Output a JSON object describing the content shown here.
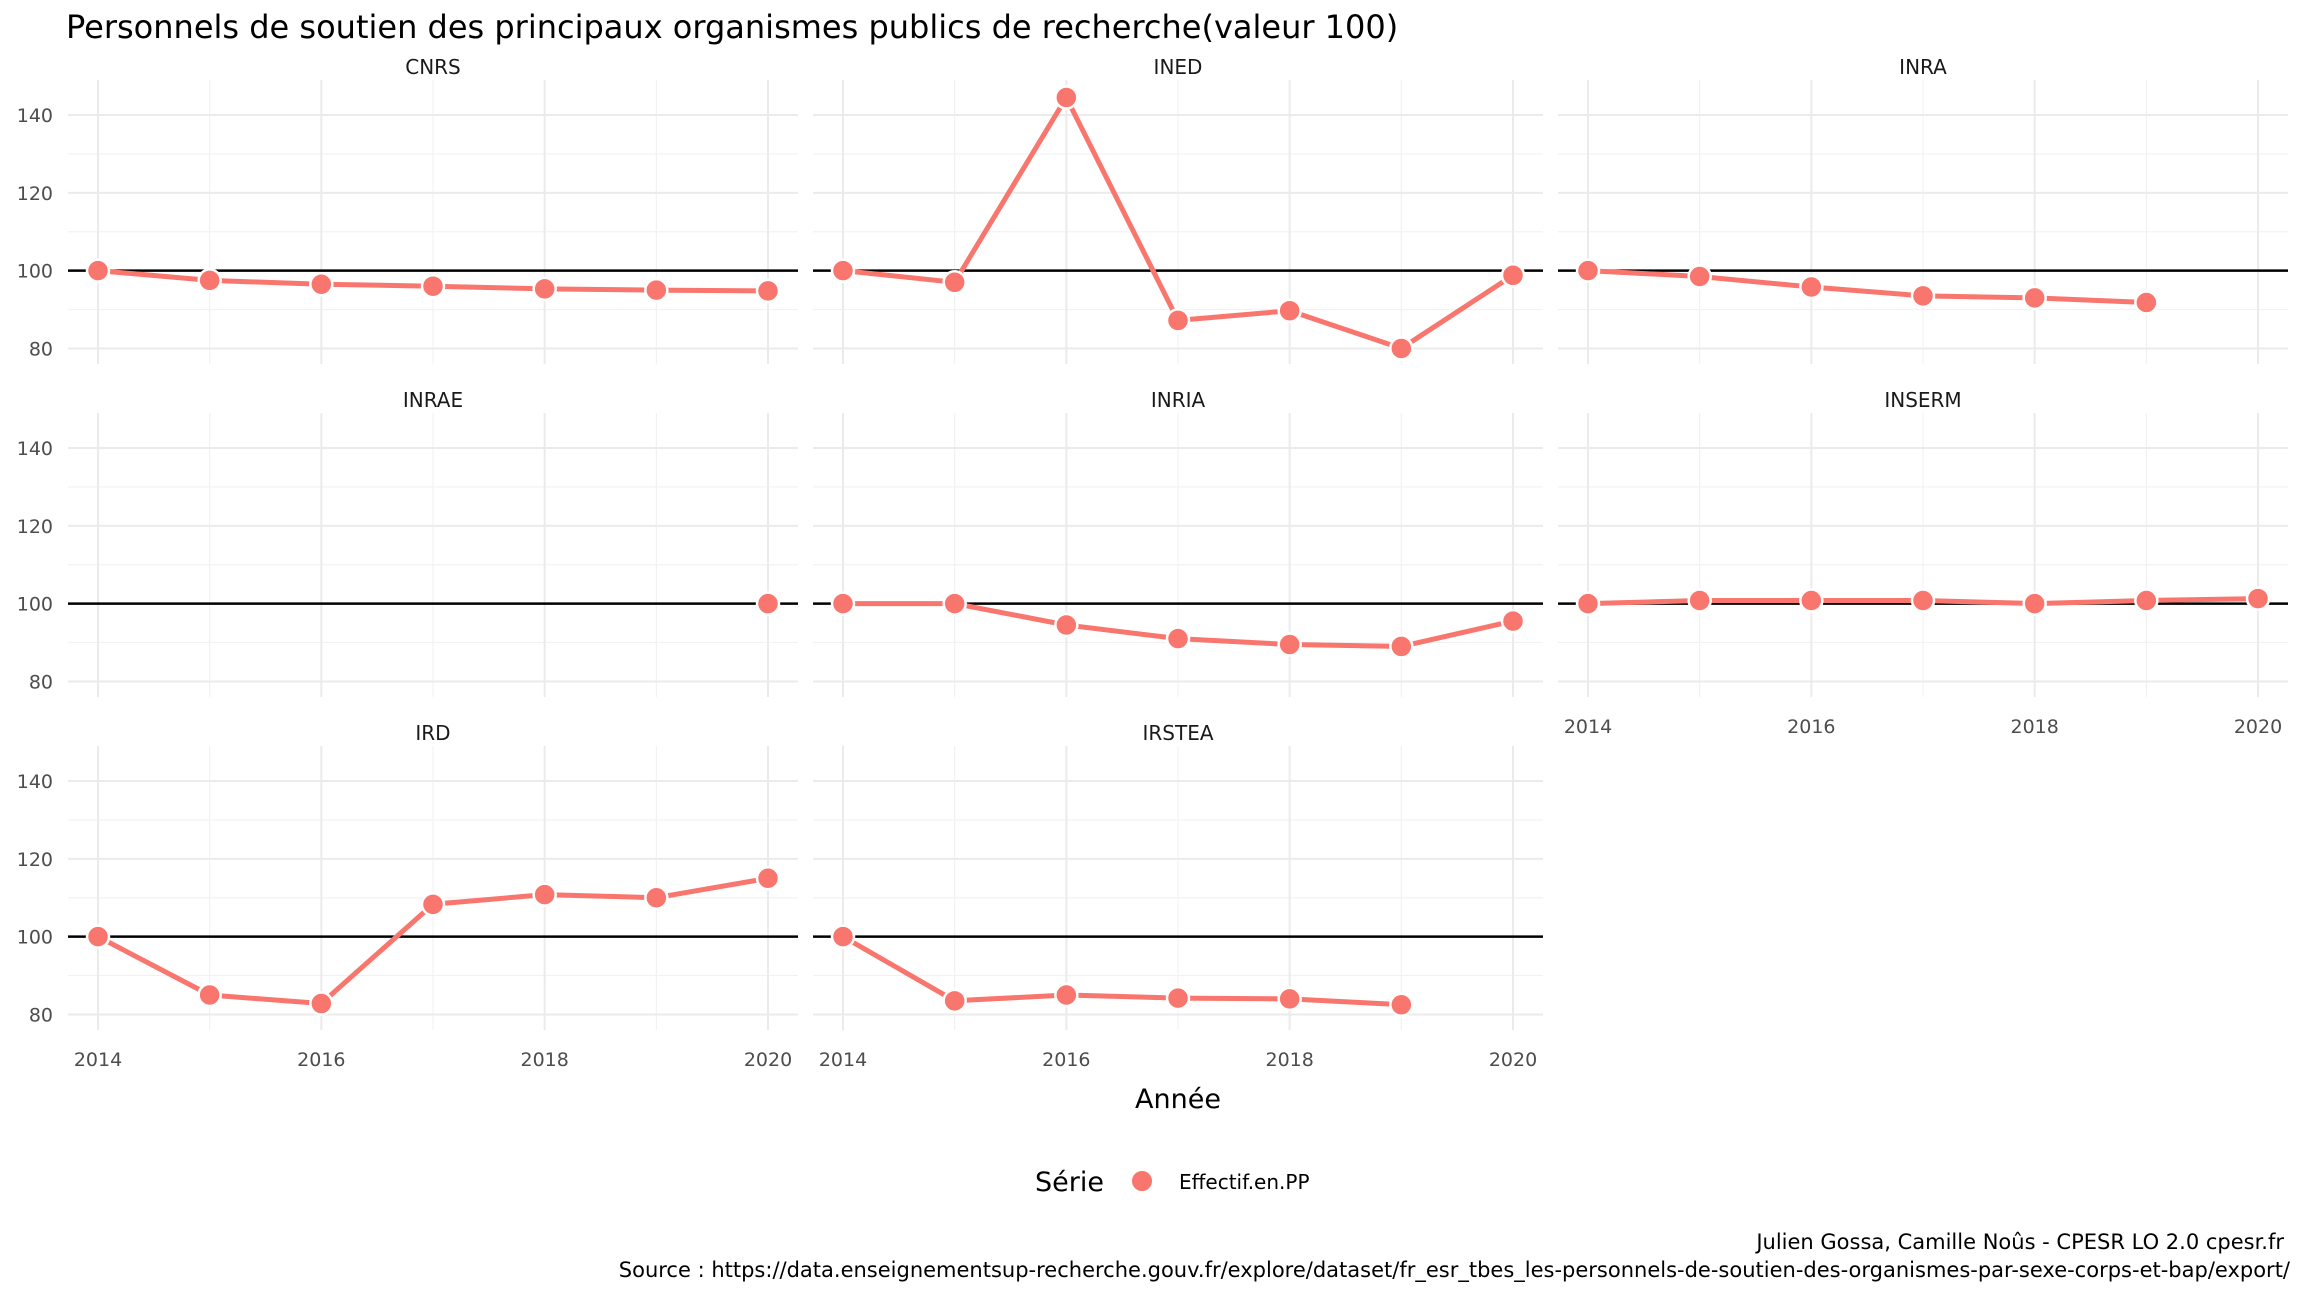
{
  "title": "Personnels de soutien des principaux organismes publics de recherche(valeur 100)",
  "caption": {
    "line1": "Julien Gossa, Camille Noûs - CPESR LO 2.0 cpesr.fr",
    "line2": "Source : https://data.enseignementsup-recherche.gouv.fr/explore/dataset/fr_esr_tbes_les-personnels-de-soutien-des-organismes-par-sexe-corps-et-bap/export/"
  },
  "legend": {
    "title": "Série",
    "label": "Effectif.en.PP",
    "position": "bottom"
  },
  "colors": {
    "series": "#F8766D",
    "reference": "#000000",
    "grid": "#EBEBEB"
  },
  "chart_data": {
    "type": "line",
    "xlabel": "Année",
    "ylabel": "",
    "xlim": [
      2014,
      2020
    ],
    "ylim": [
      76,
      149
    ],
    "x_ticks": [
      2014,
      2016,
      2018,
      2020
    ],
    "y_ticks": [
      80,
      100,
      120,
      140
    ],
    "reference_line": 100,
    "grid": true,
    "series_name": "Effectif.en.PP",
    "x": [
      2014,
      2015,
      2016,
      2017,
      2018,
      2019,
      2020
    ],
    "panels": [
      {
        "name": "CNRS",
        "values": [
          100,
          97.5,
          96.5,
          96,
          95.3,
          95,
          94.8
        ]
      },
      {
        "name": "INED",
        "values": [
          100,
          97,
          144.5,
          87.2,
          89.7,
          80,
          98.8
        ]
      },
      {
        "name": "INRA",
        "values": [
          100,
          98.5,
          95.8,
          93.5,
          93,
          91.8,
          null
        ]
      },
      {
        "name": "INRAE",
        "values": [
          null,
          null,
          null,
          null,
          null,
          null,
          100
        ]
      },
      {
        "name": "INRIA",
        "values": [
          100,
          100,
          94.5,
          91,
          89.5,
          89,
          95.5
        ]
      },
      {
        "name": "INSERM",
        "values": [
          100,
          100.8,
          100.8,
          100.8,
          100,
          100.8,
          101.3
        ]
      },
      {
        "name": "IRD",
        "values": [
          100,
          85,
          82.8,
          108.3,
          110.8,
          110,
          115
        ]
      },
      {
        "name": "IRSTEA",
        "values": [
          100,
          83.5,
          85,
          84.2,
          84,
          82.5,
          null
        ]
      }
    ]
  }
}
